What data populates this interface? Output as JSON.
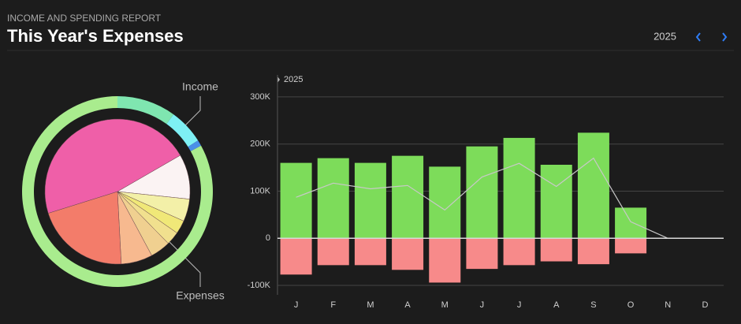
{
  "header": {
    "subtitle": "INCOME AND SPENDING REPORT",
    "title": "This Year's Expenses",
    "year": "2025"
  },
  "chart_data": [
    {
      "type": "donut",
      "series": [
        {
          "name": "Income",
          "colors": [
            "#7fe6b0",
            "#7ef0f4",
            "#4a8fe8",
            "#a9ec8e"
          ],
          "values": [
            10,
            6,
            1,
            83
          ]
        },
        {
          "name": "Expenses",
          "colors": [
            "#fbf3f3",
            "#f3f0a8",
            "#f0e878",
            "#f1e08e",
            "#f0d090",
            "#f7b98f",
            "#f37c6a",
            "#ef5fa8"
          ],
          "values": [
            10,
            5,
            3,
            3,
            4.5,
            7,
            21,
            46.5
          ]
        }
      ]
    },
    {
      "type": "bar",
      "categories": [
        "J",
        "F",
        "M",
        "A",
        "M",
        "J",
        "J",
        "A",
        "S",
        "O",
        "N",
        "D"
      ],
      "series": [
        {
          "color": "#7ddc5a",
          "values": [
            160000,
            170000,
            160000,
            175000,
            152000,
            195000,
            213000,
            156000,
            224000,
            65000,
            null,
            null
          ]
        },
        {
          "color": "#f78a8a",
          "values": [
            -77000,
            -57000,
            -57000,
            -67000,
            -94000,
            -65000,
            -57000,
            -49000,
            -55000,
            -32000,
            null,
            null
          ]
        },
        {
          "type": "line",
          "color": "#c8c8c8",
          "values": [
            87000,
            117000,
            105000,
            112000,
            60000,
            130000,
            159000,
            110000,
            170000,
            35000,
            0,
            0
          ]
        }
      ],
      "ylim": [
        -120000,
        340000
      ],
      "yticks": [
        {
          "value": -100000,
          "label": "-100K"
        },
        0,
        {
          "value": 100000,
          "label": "100K"
        },
        {
          "value": 200000,
          "label": "200K"
        },
        {
          "value": 300000,
          "label": "300K"
        }
      ],
      "grid": true
    }
  ]
}
